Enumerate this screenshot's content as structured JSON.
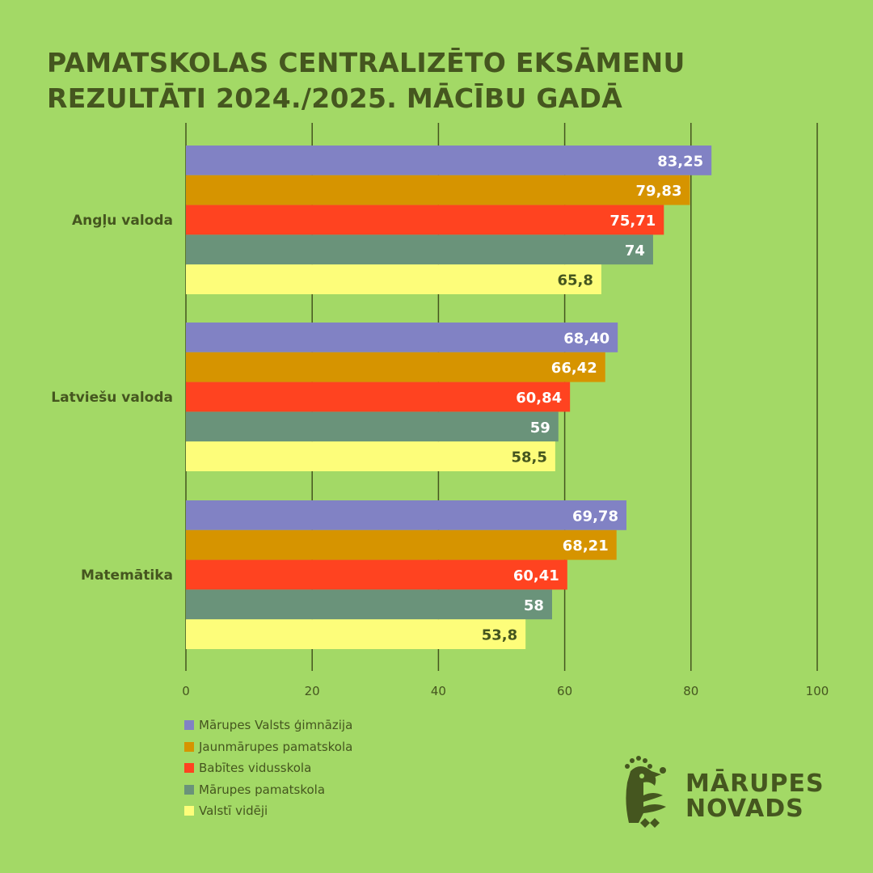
{
  "title": {
    "line1": "PAMATSKOLAS CENTRALIZĒTO EKSĀMENU",
    "line2": "REZULTĀTI 2024./2025. MĀCĪBU GADĀ"
  },
  "colors": {
    "background": "#a3d966",
    "text": "#45561f",
    "grid": "#45561f"
  },
  "chart_data": {
    "type": "bar",
    "orientation": "horizontal",
    "title": "PAMATSKOLAS CENTRALIZĒTO EKSĀMENU REZULTĀTI 2024./2025. MĀCĪBU GADĀ",
    "categories": [
      "Angļu valoda",
      "Latviešu valoda",
      "Matemātika"
    ],
    "xlim": [
      0,
      100
    ],
    "xticks": [
      "0",
      "20",
      "40",
      "60",
      "80",
      "100"
    ],
    "xtick_values": [
      0,
      20,
      40,
      60,
      80,
      100
    ],
    "grid": "vertical",
    "legend_position": "bottom-left",
    "series": [
      {
        "name": "Mārupes Valsts ģimnāzija",
        "color": "#8182c4",
        "label_color": "#ffffff",
        "values": [
          83.25,
          68.4,
          69.78
        ],
        "labels": [
          "83,25",
          "68,40",
          "69,78"
        ]
      },
      {
        "name": "Jaunmārupes pamatskola",
        "color": "#d69400",
        "label_color": "#ffffff",
        "values": [
          79.83,
          66.42,
          68.21
        ],
        "labels": [
          "79,83",
          "66,42",
          "68,21"
        ]
      },
      {
        "name": "Babītes vidusskola",
        "color": "#ff4320",
        "label_color": "#ffffff",
        "values": [
          75.71,
          60.84,
          60.41
        ],
        "labels": [
          "75,71",
          "60,84",
          "60,41"
        ]
      },
      {
        "name": "Mārupes pamatskola",
        "color": "#6a937a",
        "label_color": "#ffffff",
        "values": [
          74,
          59,
          58
        ],
        "labels": [
          "74",
          "59",
          "58"
        ]
      },
      {
        "name": "Valstī vidēji",
        "color": "#fdfd7a",
        "label_color": "#45561f",
        "values": [
          65.8,
          58.5,
          53.8
        ],
        "labels": [
          "65,8",
          "58,5",
          "53,8"
        ]
      }
    ]
  },
  "logo": {
    "line1": "MĀRUPES",
    "line2": "NOVADS",
    "icon": "bird-logo-icon"
  }
}
